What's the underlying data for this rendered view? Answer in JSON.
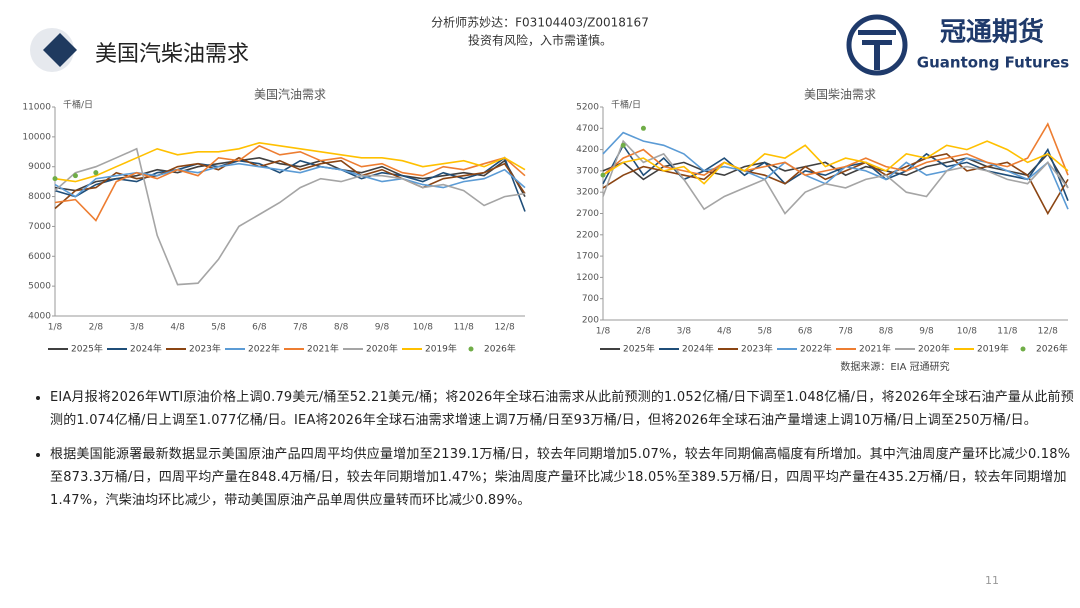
{
  "header": {
    "title": "美国汽柴油需求",
    "analyst": "分析师苏妙达：F03104403/Z0018167",
    "disclaimer": "投资有风险，入市需谨慎。"
  },
  "logo": {
    "name": "冠通期货",
    "english": "Guantong Futures"
  },
  "chart_data": [
    {
      "type": "line",
      "title": "美国汽油需求",
      "y_label": "千桶/日",
      "categories": [
        "1/8",
        null,
        "2/8",
        null,
        "3/8",
        null,
        "4/8",
        null,
        "5/8",
        null,
        "6/8",
        null,
        "7/8",
        null,
        "8/8",
        null,
        "9/8",
        null,
        "10/8",
        null,
        "11/8",
        null,
        "12/8",
        null
      ],
      "ylim": [
        4000,
        11000
      ],
      "yticks": [
        4000,
        5000,
        6000,
        7000,
        8000,
        9000,
        10000,
        11000
      ],
      "series": [
        {
          "name": "2025年",
          "color": "#404040",
          "values": [
            8300,
            8200,
            8500,
            8600,
            8700,
            8900,
            8800,
            9000,
            9100,
            9200,
            9300,
            9100,
            9000,
            9200,
            8900,
            8800,
            9000,
            8700,
            8600,
            8700,
            8800,
            8700,
            9200,
            8000
          ]
        },
        {
          "name": "2024年",
          "color": "#1f4e79",
          "values": [
            8200,
            8000,
            8400,
            8600,
            8500,
            8800,
            8900,
            9100,
            9000,
            9200,
            9100,
            8800,
            9200,
            9000,
            8900,
            8600,
            8800,
            8700,
            8500,
            8800,
            8600,
            8800,
            9300,
            7500
          ]
        },
        {
          "name": "2023年",
          "color": "#8b4513",
          "values": [
            7600,
            8200,
            8300,
            8800,
            8600,
            8700,
            9000,
            9100,
            8900,
            9300,
            9000,
            9200,
            8900,
            9100,
            9200,
            8700,
            8900,
            8600,
            8300,
            8600,
            8700,
            8800,
            9100,
            8100
          ]
        },
        {
          "name": "2022年",
          "color": "#5b9bd5",
          "values": [
            8400,
            8000,
            8600,
            8700,
            8800,
            8700,
            8900,
            8800,
            9000,
            9100,
            9000,
            8900,
            8800,
            9000,
            8900,
            8700,
            8500,
            8600,
            8400,
            8300,
            8500,
            8600,
            8900,
            8300
          ]
        },
        {
          "name": "2021年",
          "color": "#ed7d31",
          "values": [
            7800,
            7900,
            7200,
            8500,
            8800,
            8600,
            8900,
            8700,
            9300,
            9200,
            9700,
            9400,
            9500,
            9200,
            9300,
            9000,
            9100,
            8800,
            8700,
            9000,
            8900,
            9100,
            9300,
            8700
          ]
        },
        {
          "name": "2020年",
          "color": "#a5a5a5",
          "values": [
            8200,
            8800,
            9000,
            9300,
            9600,
            6700,
            5050,
            5100,
            5900,
            7000,
            7400,
            7800,
            8300,
            8600,
            8500,
            8700,
            8700,
            8600,
            8300,
            8400,
            8200,
            7700,
            8000,
            8100
          ]
        },
        {
          "name": "2019年",
          "color": "#ffc000",
          "values": [
            8600,
            8500,
            8700,
            9000,
            9300,
            9600,
            9400,
            9500,
            9500,
            9600,
            9800,
            9700,
            9600,
            9500,
            9400,
            9300,
            9300,
            9200,
            9000,
            9100,
            9200,
            9000,
            9300,
            8900
          ]
        },
        {
          "name": "2026年",
          "color": "#70ad47",
          "style": "markers",
          "values": [
            8600,
            8700,
            8800,
            null,
            null,
            null,
            null,
            null,
            null,
            null,
            null,
            null,
            null,
            null,
            null,
            null,
            null,
            null,
            null,
            null,
            null,
            null,
            null,
            null
          ]
        }
      ]
    },
    {
      "type": "line",
      "title": "美国柴油需求",
      "y_label": "千桶/日",
      "categories": [
        "1/8",
        null,
        "2/8",
        null,
        "3/8",
        null,
        "4/8",
        null,
        "5/8",
        null,
        "6/8",
        null,
        "7/8",
        null,
        "8/8",
        null,
        "9/8",
        null,
        "10/8",
        null,
        "11/8",
        null,
        "12/8",
        null
      ],
      "ylim": [
        200,
        5200
      ],
      "yticks": [
        200,
        700,
        1200,
        1700,
        2200,
        2700,
        3200,
        3700,
        4200,
        4700,
        5200
      ],
      "series": [
        {
          "name": "2025年",
          "color": "#404040",
          "values": [
            3700,
            3900,
            3500,
            3800,
            3900,
            3700,
            3600,
            3800,
            3900,
            3700,
            3800,
            3900,
            3600,
            3800,
            3700,
            3600,
            3800,
            3900,
            4000,
            3800,
            3700,
            3600,
            4100,
            3300
          ]
        },
        {
          "name": "2024年",
          "color": "#1f4e79",
          "values": [
            3400,
            4300,
            3600,
            4000,
            3500,
            3700,
            4000,
            3600,
            3900,
            3400,
            3700,
            3600,
            3800,
            3900,
            3500,
            3700,
            4100,
            3800,
            3900,
            3700,
            3600,
            3500,
            4200,
            3000
          ]
        },
        {
          "name": "2023年",
          "color": "#8b4513",
          "values": [
            3300,
            3600,
            3800,
            3700,
            3600,
            3500,
            3900,
            3700,
            3600,
            3400,
            3800,
            3500,
            3700,
            3900,
            3600,
            3800,
            4000,
            4100,
            3700,
            3800,
            3900,
            3600,
            2700,
            3500
          ]
        },
        {
          "name": "2022年",
          "color": "#5b9bd5",
          "values": [
            4100,
            4600,
            4400,
            4300,
            4100,
            3700,
            3800,
            3700,
            3500,
            3900,
            3600,
            3400,
            3800,
            3700,
            3500,
            3900,
            3600,
            3700,
            4000,
            3900,
            3700,
            3500,
            3900,
            2800
          ]
        },
        {
          "name": "2021年",
          "color": "#ed7d31",
          "values": [
            3600,
            4000,
            4200,
            3800,
            3700,
            3600,
            3900,
            3700,
            3800,
            3900,
            3600,
            3700,
            3800,
            4000,
            3800,
            3700,
            3900,
            4000,
            4100,
            3900,
            3800,
            4000,
            4800,
            3600
          ]
        },
        {
          "name": "2020年",
          "color": "#a5a5a5",
          "values": [
            3100,
            4400,
            3900,
            4100,
            3500,
            2800,
            3100,
            3300,
            3500,
            2700,
            3200,
            3400,
            3300,
            3500,
            3600,
            3200,
            3100,
            3700,
            3800,
            3700,
            3500,
            3400,
            3900,
            3300
          ]
        },
        {
          "name": "2019年",
          "color": "#ffc000",
          "values": [
            3600,
            3900,
            4000,
            3700,
            3800,
            3400,
            3900,
            3700,
            4100,
            4000,
            4300,
            3800,
            4000,
            3900,
            3700,
            4100,
            4000,
            4300,
            4200,
            4400,
            4200,
            3900,
            4100,
            3700
          ]
        },
        {
          "name": "2026年",
          "color": "#70ad47",
          "style": "markers",
          "values": [
            3600,
            4300,
            4700,
            null,
            null,
            null,
            null,
            null,
            null,
            null,
            null,
            null,
            null,
            null,
            null,
            null,
            null,
            null,
            null,
            null,
            null,
            null,
            null,
            null
          ]
        }
      ]
    }
  ],
  "source": "数据来源：EIA 冠通研究",
  "bullets": [
    "EIA月报将2026年WTI原油价格上调0.79美元/桶至52.21美元/桶；将2026年全球石油需求从此前预测的1.052亿桶/日下调至1.048亿桶/日，将2026年全球石油产量从此前预测的1.074亿桶/日上调至1.077亿桶/日。IEA将2026年全球石油需求增速上调7万桶/日至93万桶/日，但将2026年全球石油产量增速上调10万桶/日上调至250万桶/日。",
    "根据美国能源署最新数据显示美国原油产品四周平均供应量增加至2139.1万桶/日，较去年同期增加5.07%，较去年同期偏高幅度有所增加。其中汽油周度产量环比减少0.18%至873.3万桶/日，四周平均产量在848.4万桶/日，较去年同期增加1.47%；柴油周度产量环比减少18.05%至389.5万桶/日，四周平均产量在435.2万桶/日，较去年同期增加1.47%，汽柴油均环比减少，带动美国原油产品单周供应量转而环比减少0.89%。"
  ],
  "page_number": "11"
}
